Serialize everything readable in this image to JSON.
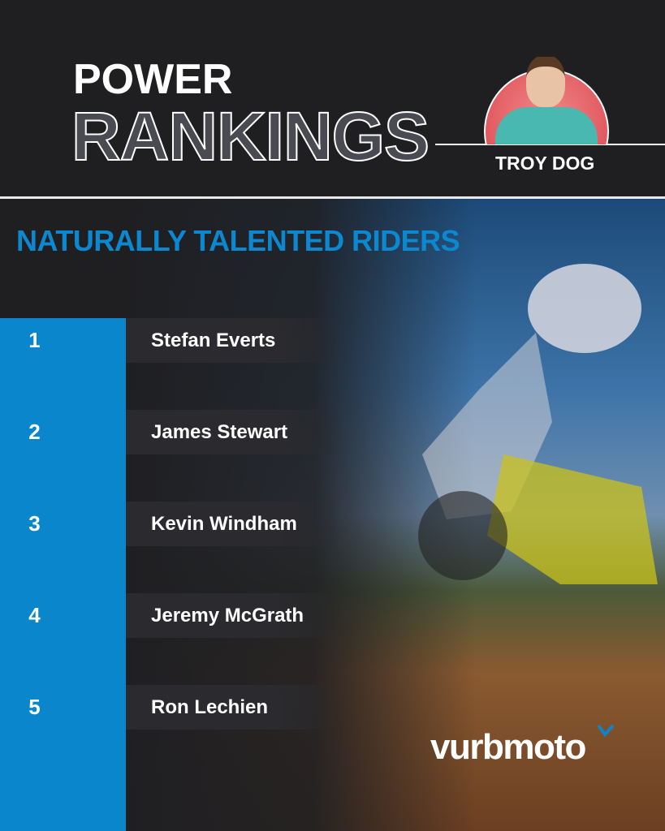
{
  "header": {
    "title_line1": "POWER",
    "title_line2": "RANKINGS",
    "author": "TROY DOG"
  },
  "subtitle": "NATURALLY TALENTED RIDERS",
  "rankings": [
    {
      "rank": "1",
      "name": "Stefan Everts"
    },
    {
      "rank": "2",
      "name": "James Stewart"
    },
    {
      "rank": "3",
      "name": "Kevin Windham"
    },
    {
      "rank": "4",
      "name": "Jeremy McGrath"
    },
    {
      "rank": "5",
      "name": "Ron Lechien"
    }
  ],
  "brand": "vurbmoto",
  "colors": {
    "accent": "#0a86cc",
    "background": "#1f1f22"
  }
}
